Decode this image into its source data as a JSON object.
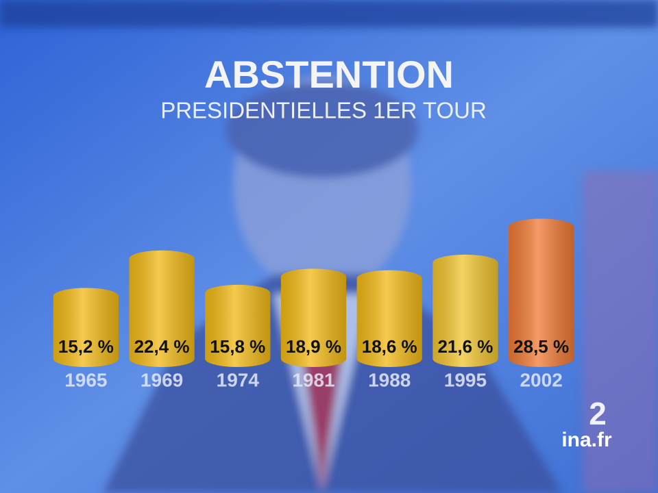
{
  "chart_data": {
    "type": "bar",
    "title": "ABSTENTION",
    "subtitle": "PRESIDENTIELLES 1ER TOUR",
    "categories": [
      "1965",
      "1969",
      "1974",
      "1981",
      "1988",
      "1995",
      "2002"
    ],
    "values": [
      15.2,
      22.4,
      15.8,
      18.9,
      18.6,
      21.6,
      28.5
    ],
    "value_labels": [
      "15,2 %",
      "22,4 %",
      "15,8 %",
      "18,9 %",
      "18,6 %",
      "21,6 %",
      "28,5 %"
    ],
    "colors": [
      "#f2b915",
      "#f2b915",
      "#f2b915",
      "#f2b915",
      "#f2b915",
      "#f2c530",
      "#f07a35"
    ]
  },
  "channel_logo": "2",
  "watermark": "ina.fr"
}
